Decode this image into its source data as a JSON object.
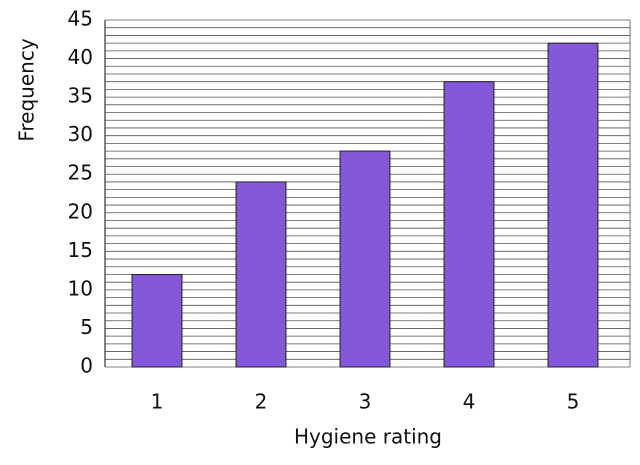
{
  "chart_data": {
    "type": "bar",
    "x_label": "Hygiene rating",
    "y_label": "Frequency",
    "categories": [
      "1",
      "2",
      "3",
      "4",
      "5"
    ],
    "values": [
      12,
      24,
      28,
      37,
      42
    ],
    "color": "#8257d8",
    "ylim": [
      0,
      45
    ],
    "yticks": [
      0,
      5,
      10,
      15,
      20,
      25,
      30,
      35,
      40,
      45
    ],
    "minor_yticks": [
      1,
      2,
      3,
      4,
      6,
      7,
      8,
      9,
      11,
      12,
      13,
      14,
      16,
      17,
      18,
      19,
      21,
      22,
      23,
      24,
      26,
      27,
      28,
      29,
      31,
      32,
      33,
      34,
      36,
      37,
      38,
      39,
      41,
      42,
      43,
      44
    ],
    "grid": true
  }
}
